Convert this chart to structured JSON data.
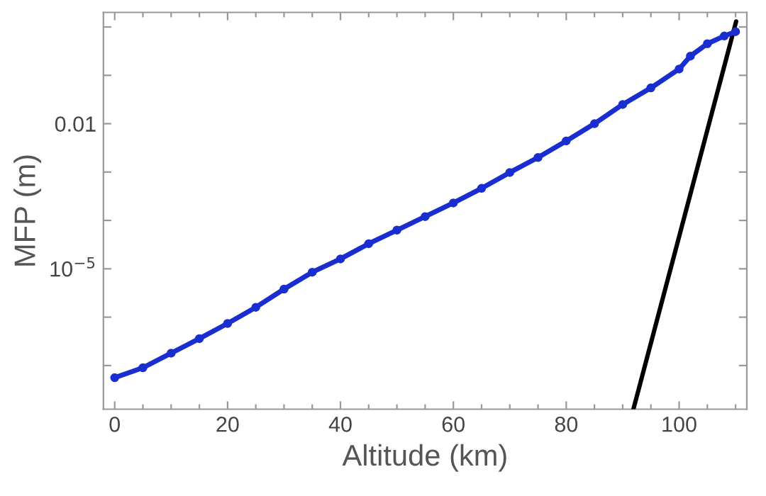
{
  "chart_data": {
    "type": "line",
    "xlabel": "Altitude (km)",
    "ylabel": "MFP (m)",
    "log": "y",
    "grid": false,
    "legend": false,
    "xlim": [
      -2,
      112
    ],
    "ylim": [
      1.25e-08,
      2
    ],
    "xticks": [
      0,
      {
        "value": 5,
        "label": null
      },
      {
        "value": 10,
        "label": null
      },
      {
        "value": 15,
        "label": null
      },
      20,
      {
        "value": 25,
        "label": null
      },
      {
        "value": 30,
        "label": null
      },
      {
        "value": 35,
        "label": null
      },
      40,
      {
        "value": 45,
        "label": null
      },
      {
        "value": 50,
        "label": null
      },
      {
        "value": 55,
        "label": null
      },
      60,
      {
        "value": 65,
        "label": null
      },
      {
        "value": 70,
        "label": null
      },
      {
        "value": 75,
        "label": null
      },
      80,
      {
        "value": 85,
        "label": null
      },
      {
        "value": 90,
        "label": null
      },
      {
        "value": 95,
        "label": null
      },
      100,
      {
        "value": 105,
        "label": null
      },
      {
        "value": 110,
        "label": null
      }
    ],
    "yticks": [
      {
        "value": 1e-07,
        "label": null
      },
      {
        "value": 1e-06,
        "label": null
      },
      {
        "value": 1e-05,
        "label": "10$^{−5}$"
      },
      {
        "value": 0.0001,
        "label": null
      },
      {
        "value": 0.001,
        "label": null
      },
      0.01,
      {
        "value": 0.1,
        "label": null
      },
      {
        "value": 1,
        "label": null
      }
    ],
    "series": [
      {
        "color": "#1a2ed0",
        "marker": "circle",
        "line_style": "solid",
        "x": [
          0,
          5,
          10,
          15,
          20,
          25,
          30,
          35,
          40,
          45,
          50,
          55,
          60,
          65,
          70,
          75,
          80,
          85,
          90,
          95,
          100,
          102,
          105,
          108,
          110
        ],
        "values": [
          5.6e-08,
          9e-08,
          1.8e-07,
          3.6e-07,
          7.4e-07,
          1.6e-06,
          3.8e-06,
          8.5e-06,
          1.6e-05,
          3.3e-05,
          6.3e-05,
          0.00012,
          0.00023,
          0.00046,
          0.00098,
          0.002,
          0.0044,
          0.01,
          0.025,
          0.055,
          0.135,
          0.25,
          0.45,
          0.65,
          0.8
        ]
      },
      {
        "color": "#000000",
        "marker": "none",
        "line_style": "solid",
        "x": [
          91.9,
          110.1
        ],
        "values": [
          1.25e-08,
          1.3
        ]
      }
    ]
  }
}
